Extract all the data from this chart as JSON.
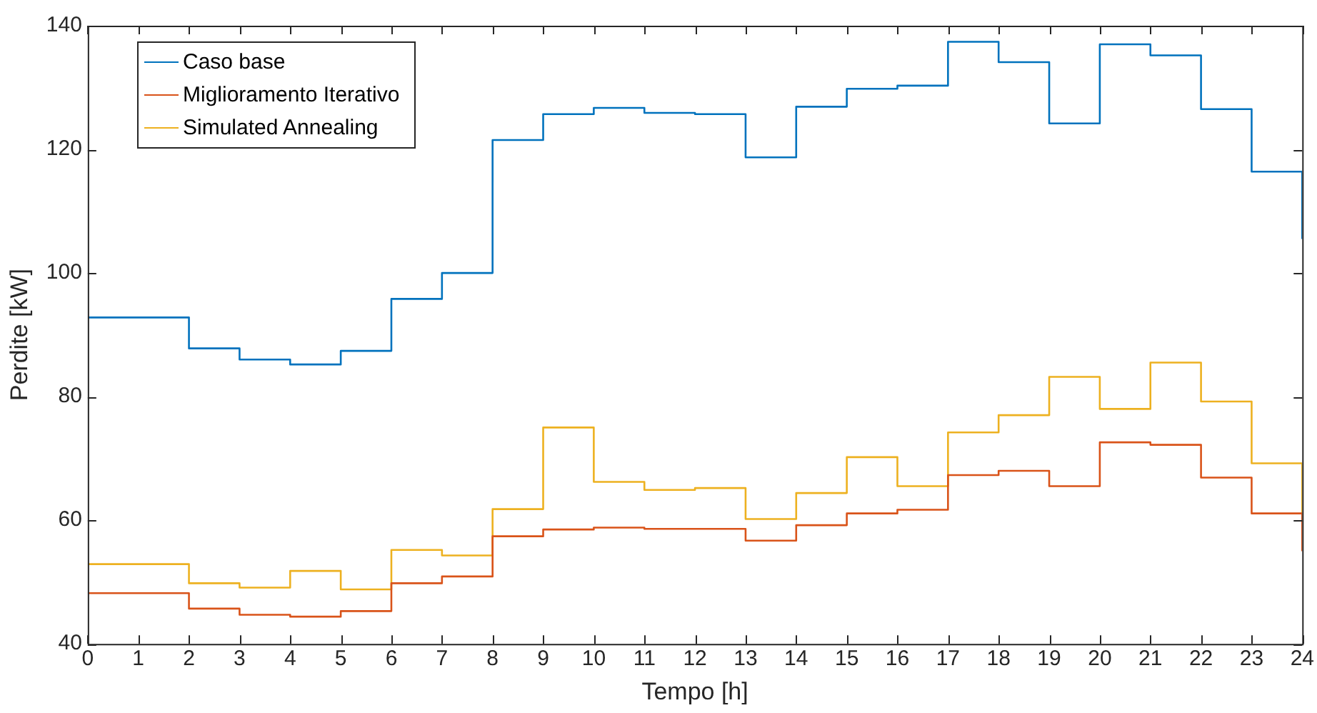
{
  "chart_data": {
    "type": "step",
    "xlabel": "Tempo [h]",
    "ylabel": "Perdite [kW]",
    "x": [
      0,
      1,
      2,
      3,
      4,
      5,
      6,
      7,
      8,
      9,
      10,
      11,
      12,
      13,
      14,
      15,
      16,
      17,
      18,
      19,
      20,
      21,
      22,
      23,
      24
    ],
    "series": [
      {
        "name": "Caso base",
        "color": "#0072bd",
        "values": [
          92.8,
          92.8,
          87.8,
          86,
          85.2,
          87.4,
          95.8,
          100,
          121.5,
          125.7,
          126.7,
          125.9,
          125.7,
          118.7,
          126.9,
          129.8,
          130.3,
          137.4,
          134.1,
          124.2,
          137,
          135.2,
          126.5,
          116.4,
          105.5
        ]
      },
      {
        "name": "Miglioramento Iterativo",
        "color": "#d95319",
        "values": [
          48.2,
          48.2,
          45.7,
          44.7,
          44.4,
          45.3,
          49.8,
          50.9,
          57.4,
          58.5,
          58.8,
          58.6,
          58.6,
          56.7,
          59.2,
          61.1,
          61.7,
          67.3,
          68,
          65.5,
          72.6,
          72.2,
          66.9,
          61.1,
          55
        ]
      },
      {
        "name": "Simulated Annealing",
        "color": "#edb120",
        "values": [
          52.9,
          52.9,
          49.8,
          49.1,
          51.8,
          48.8,
          55.2,
          54.3,
          61.8,
          75,
          66.2,
          64.9,
          65.2,
          60.2,
          64.4,
          70.2,
          65.5,
          74.2,
          77,
          83.2,
          78,
          85.5,
          79.2,
          69.2,
          59.7
        ]
      }
    ],
    "xlim": [
      0,
      24
    ],
    "xticks": [
      0,
      1,
      2,
      3,
      4,
      5,
      6,
      7,
      8,
      9,
      10,
      11,
      12,
      13,
      14,
      15,
      16,
      17,
      18,
      19,
      20,
      21,
      22,
      23,
      24
    ],
    "ylim": [
      40,
      140
    ],
    "yticks": [
      40,
      60,
      80,
      100,
      120,
      140
    ],
    "grid": false,
    "legend": "top left"
  }
}
